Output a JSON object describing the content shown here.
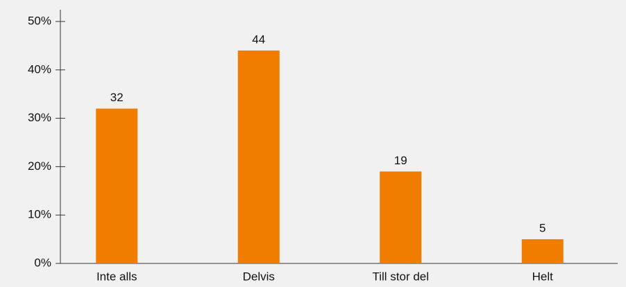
{
  "chart_data": {
    "type": "bar",
    "categories": [
      "Inte alls",
      "Delvis",
      "Till stor del",
      "Helt"
    ],
    "values": [
      32,
      44,
      19,
      5
    ],
    "color": "#f07d00",
    "ylim": [
      0,
      50
    ],
    "yticks": [
      {
        "value": 0,
        "label": "0%"
      },
      {
        "value": 10,
        "label": "10%"
      },
      {
        "value": 20,
        "label": "20%"
      },
      {
        "value": 30,
        "label": "30%"
      },
      {
        "value": 40,
        "label": "40%"
      },
      {
        "value": 50,
        "label": "50%"
      }
    ]
  }
}
